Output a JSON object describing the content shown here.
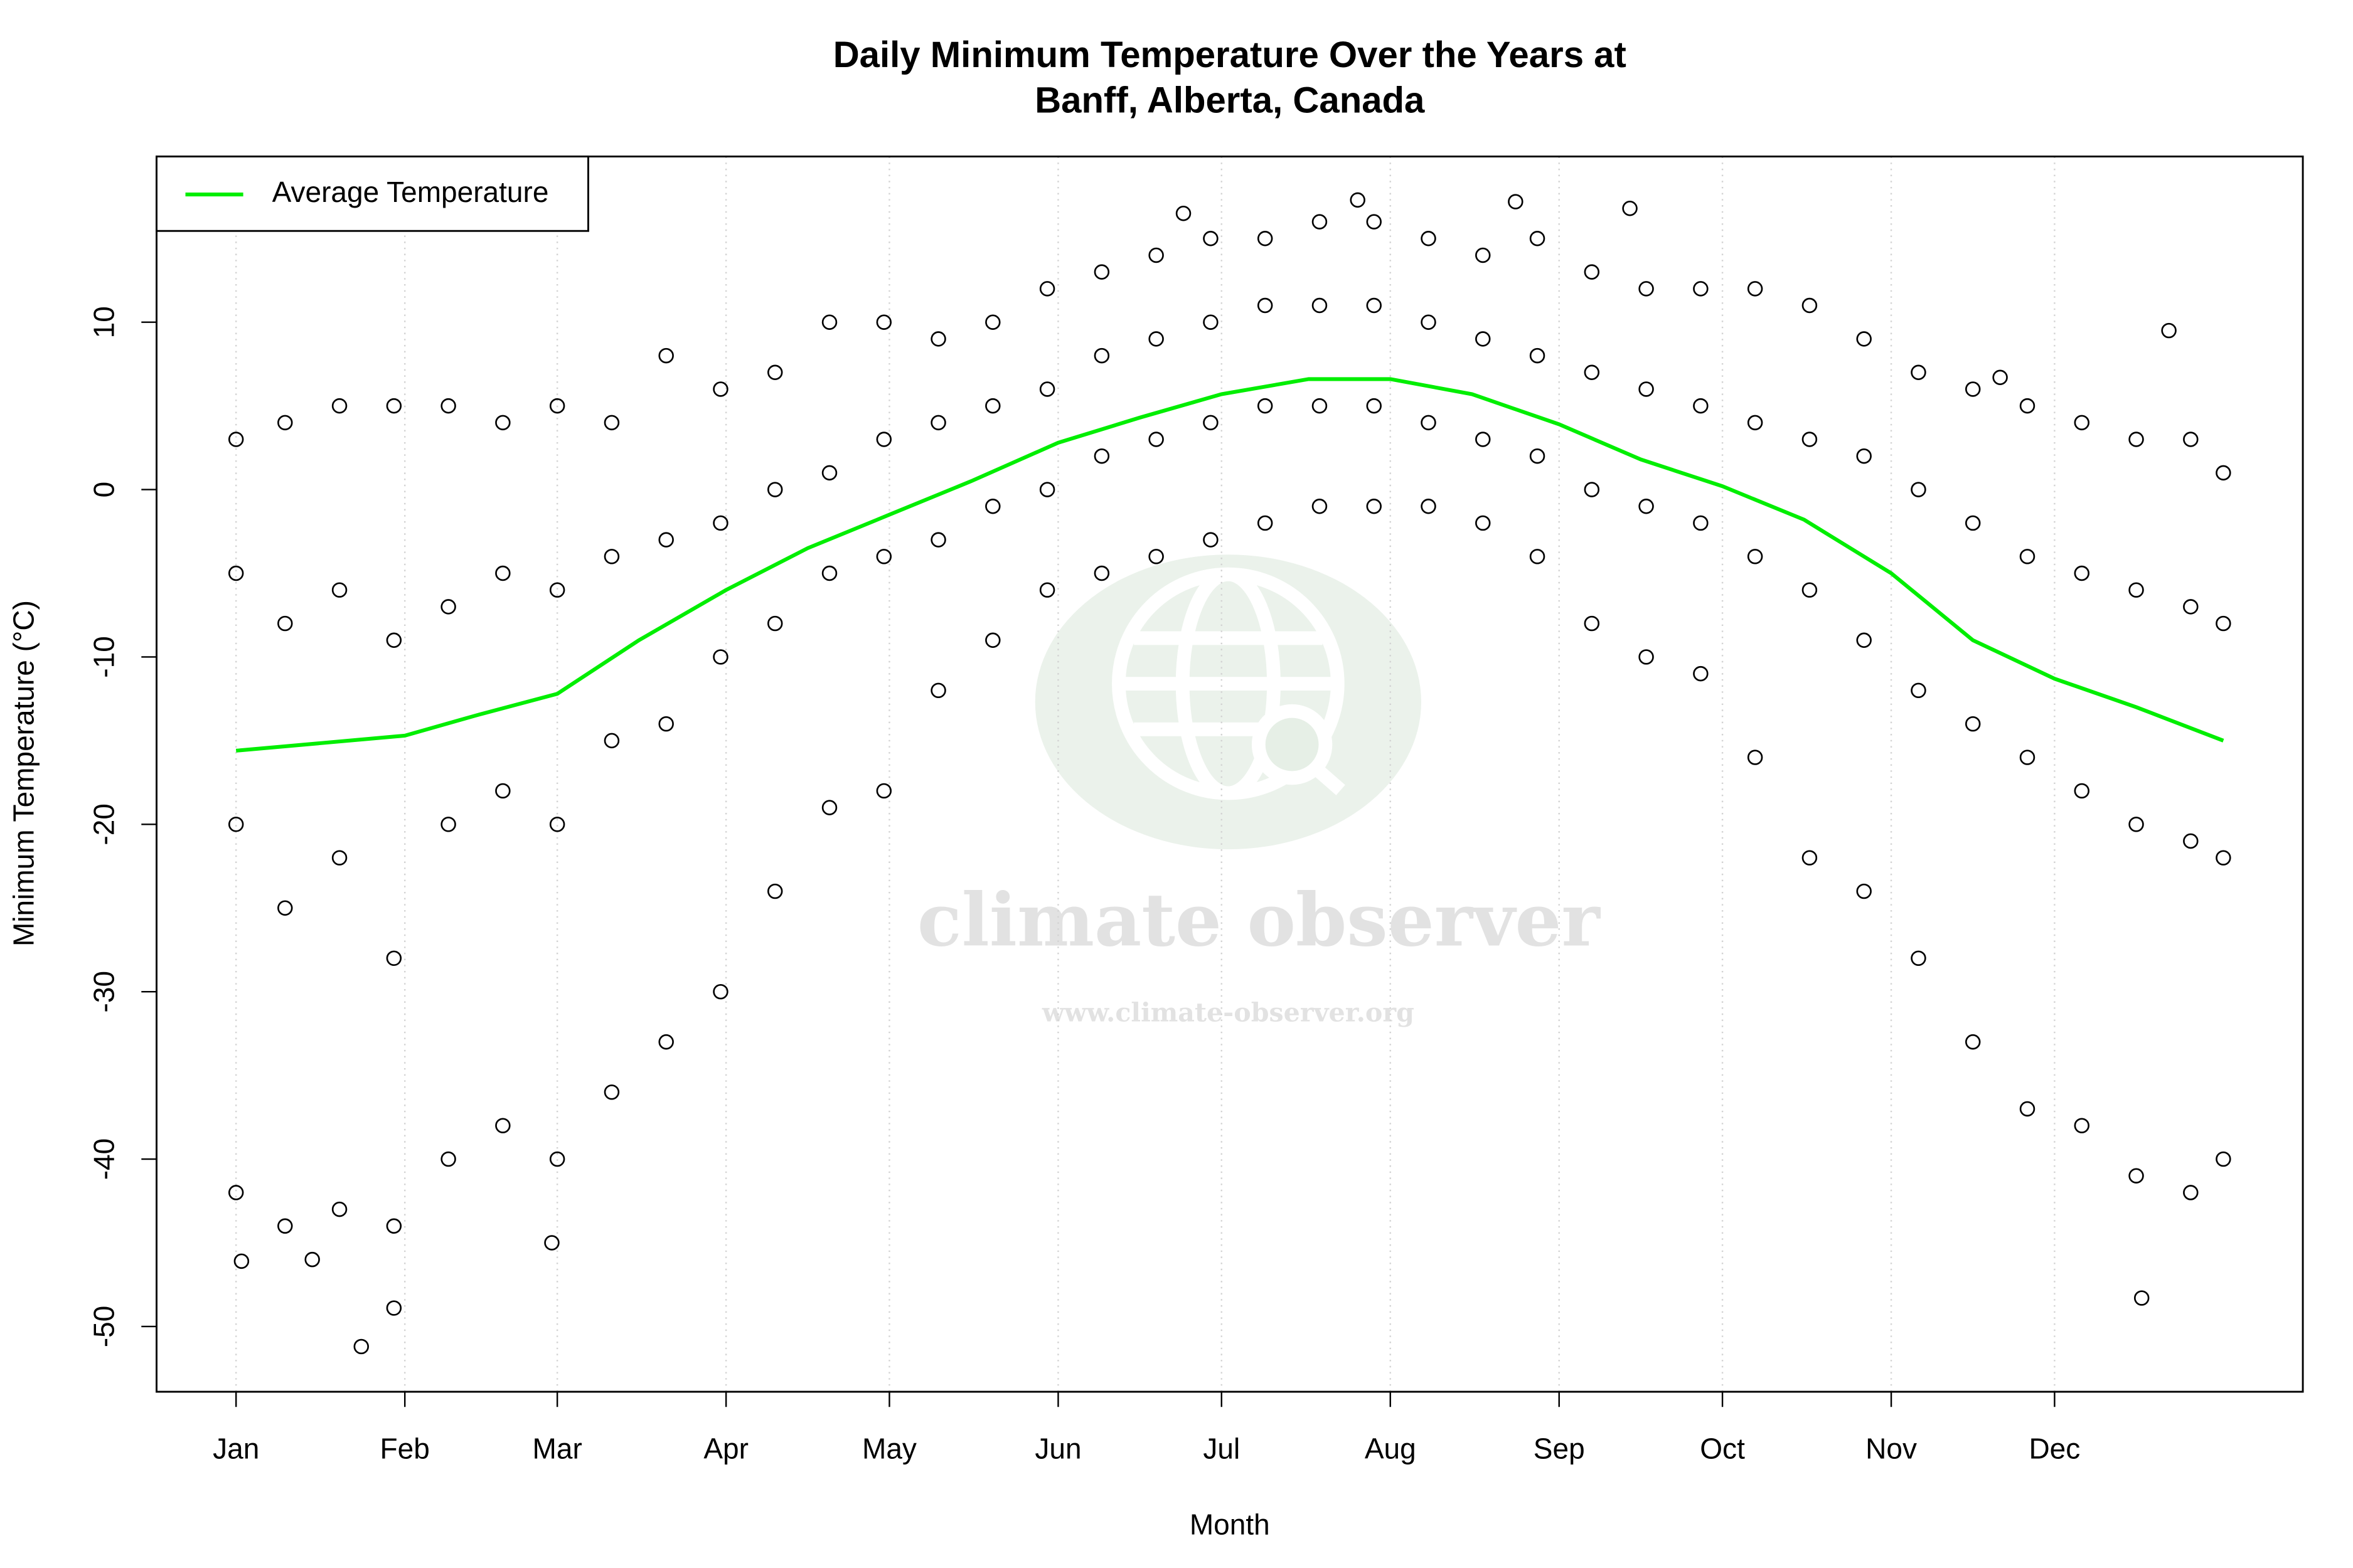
{
  "chart_data": {
    "type": "scatter",
    "title": "Daily Minimum Temperature Over the Years at\nBanff, Alberta, Canada",
    "xlabel": "Month",
    "ylabel": "Minimum Temperature (°C)",
    "watermark": {
      "title": "climate observer",
      "url": "www.climate-observer.org"
    },
    "xlim": [
      -13.6,
      380.6
    ],
    "ylim": [
      -53.9,
      19.9
    ],
    "xticks": [
      {
        "value": 1,
        "label": "Jan"
      },
      {
        "value": 32,
        "label": "Feb"
      },
      {
        "value": 60,
        "label": "Mar"
      },
      {
        "value": 91,
        "label": "Apr"
      },
      {
        "value": 121,
        "label": "May"
      },
      {
        "value": 152,
        "label": "Jun"
      },
      {
        "value": 182,
        "label": "Jul"
      },
      {
        "value": 213,
        "label": "Aug"
      },
      {
        "value": 244,
        "label": "Sep"
      },
      {
        "value": 274,
        "label": "Oct"
      },
      {
        "value": 305,
        "label": "Nov"
      },
      {
        "value": 335,
        "label": "Dec"
      }
    ],
    "yticks": [
      -50,
      -40,
      -30,
      -20,
      -10,
      0,
      10
    ],
    "grid": true,
    "legend": "top-left",
    "points": {
      "color": "#000000",
      "x": [
        1,
        1,
        1,
        1,
        10,
        10,
        10,
        10,
        20,
        20,
        20,
        20,
        30,
        30,
        30,
        30,
        40,
        40,
        40,
        40,
        50,
        50,
        50,
        50,
        60,
        60,
        60,
        60,
        70,
        70,
        70,
        70,
        80,
        80,
        80,
        80,
        90,
        90,
        90,
        90,
        100,
        100,
        100,
        100,
        110,
        110,
        110,
        110,
        120,
        120,
        120,
        120,
        130,
        130,
        130,
        130,
        140,
        140,
        140,
        140,
        150,
        150,
        150,
        150,
        160,
        160,
        160,
        160,
        170,
        170,
        170,
        170,
        180,
        180,
        180,
        180,
        190,
        190,
        190,
        190,
        200,
        200,
        200,
        200,
        210,
        210,
        210,
        210,
        220,
        220,
        220,
        220,
        230,
        230,
        230,
        230,
        240,
        240,
        240,
        240,
        250,
        250,
        250,
        250,
        260,
        260,
        260,
        260,
        270,
        270,
        270,
        270,
        280,
        280,
        280,
        280,
        290,
        290,
        290,
        290,
        300,
        300,
        300,
        300,
        310,
        310,
        310,
        310,
        320,
        320,
        320,
        320,
        330,
        330,
        330,
        330,
        340,
        340,
        340,
        340,
        350,
        350,
        350,
        350,
        360,
        360,
        360,
        360,
        366,
        366,
        366,
        366,
        24,
        30,
        351,
        2,
        15,
        59,
        356,
        325,
        175,
        207,
        236,
        257
      ],
      "values": [
        3,
        -5,
        -20,
        -42,
        4,
        -8,
        -25,
        -44,
        5,
        -6,
        -22,
        -43,
        5,
        -9,
        -28,
        -44,
        5,
        -7,
        -20,
        -40,
        4,
        -5,
        -18,
        -38,
        5,
        -6,
        -20,
        -40,
        4,
        -4,
        -15,
        -36,
        8,
        -3,
        -14,
        -33,
        6,
        -2,
        -10,
        -30,
        7,
        0,
        -8,
        -24,
        10,
        1,
        -5,
        -19,
        10,
        3,
        -4,
        -18,
        9,
        4,
        -3,
        -12,
        10,
        5,
        -1,
        -9,
        12,
        6,
        0,
        -6,
        13,
        8,
        2,
        -5,
        14,
        9,
        3,
        -4,
        15,
        10,
        4,
        -3,
        15,
        11,
        5,
        -2,
        16,
        11,
        5,
        -1,
        16,
        11,
        5,
        -1,
        15,
        10,
        4,
        -1,
        14,
        9,
        3,
        -2,
        15,
        8,
        2,
        -4,
        13,
        7,
        0,
        -8,
        12,
        6,
        -1,
        -10,
        12,
        5,
        -2,
        -11,
        12,
        4,
        -4,
        -16,
        11,
        3,
        -6,
        -22,
        9,
        2,
        -9,
        -24,
        7,
        0,
        -12,
        -28,
        6,
        -2,
        -14,
        -33,
        5,
        -4,
        -16,
        -37,
        4,
        -5,
        -18,
        -38,
        3,
        -6,
        -20,
        -41,
        3,
        -7,
        -21,
        -42,
        1,
        -8,
        -22,
        -40,
        -51.2,
        -48.9,
        -48.3,
        -46.1,
        -46,
        -45,
        9.5,
        6.7,
        16.5,
        17.3,
        17.2,
        16.8
      ]
    },
    "series": [
      {
        "name": "Average Temperature",
        "color": "#00ee00",
        "x": [
          1,
          32,
          45,
          60,
          75,
          91,
          106,
          121,
          136,
          152,
          167,
          182,
          198,
          213,
          228,
          244,
          259,
          274,
          289,
          305,
          320,
          335,
          350,
          366
        ],
        "values": [
          -15.6,
          -14.7,
          -13.5,
          -12.2,
          -9,
          -6,
          -3.5,
          -1.5,
          0.5,
          2.8,
          4.3,
          5.7,
          6.6,
          6.6,
          5.7,
          3.9,
          1.8,
          0.2,
          -1.8,
          -5,
          -9,
          -11.3,
          -13,
          -15
        ]
      }
    ]
  }
}
